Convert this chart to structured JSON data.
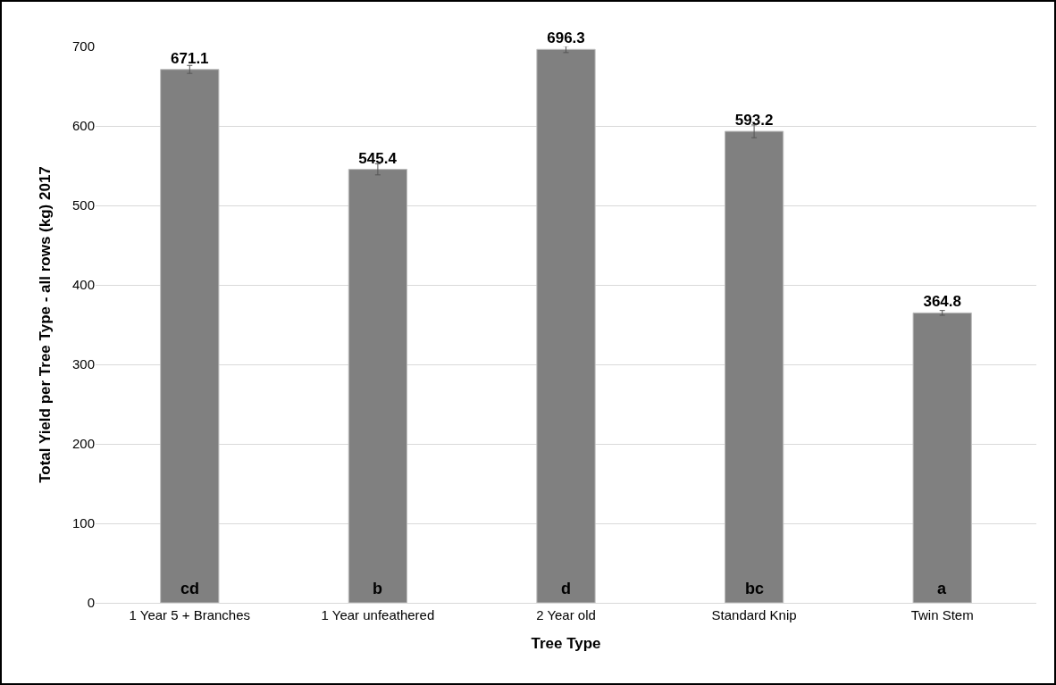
{
  "chart_data": {
    "type": "bar",
    "xlabel": "Tree Type",
    "ylabel": "Total Yield per Tree Type - all rows (kg) 2017",
    "categories": [
      "1 Year 5 + Branches",
      "1 Year unfeathered",
      "2 Year old",
      "Standard Knip",
      "Twin Stem"
    ],
    "values": [
      671.1,
      545.4,
      696.3,
      593.2,
      364.8
    ],
    "errors": [
      5,
      7,
      4,
      8,
      3
    ],
    "color": "#808080",
    "ylim": [
      0,
      700
    ],
    "yticks": [
      0,
      100,
      200,
      300,
      400,
      500,
      600,
      700
    ],
    "grid": "y",
    "data_labels": true,
    "annotations": [
      {
        "text": "cd",
        "x": "1 Year 5 + Branches",
        "y": 0
      },
      {
        "text": "b",
        "x": "1 Year unfeathered",
        "y": 0
      },
      {
        "text": "d",
        "x": "2 Year old",
        "y": 0
      },
      {
        "text": "bc",
        "x": "Standard Knip",
        "y": 0
      },
      {
        "text": "a",
        "x": "Twin Stem",
        "y": 0
      }
    ]
  }
}
